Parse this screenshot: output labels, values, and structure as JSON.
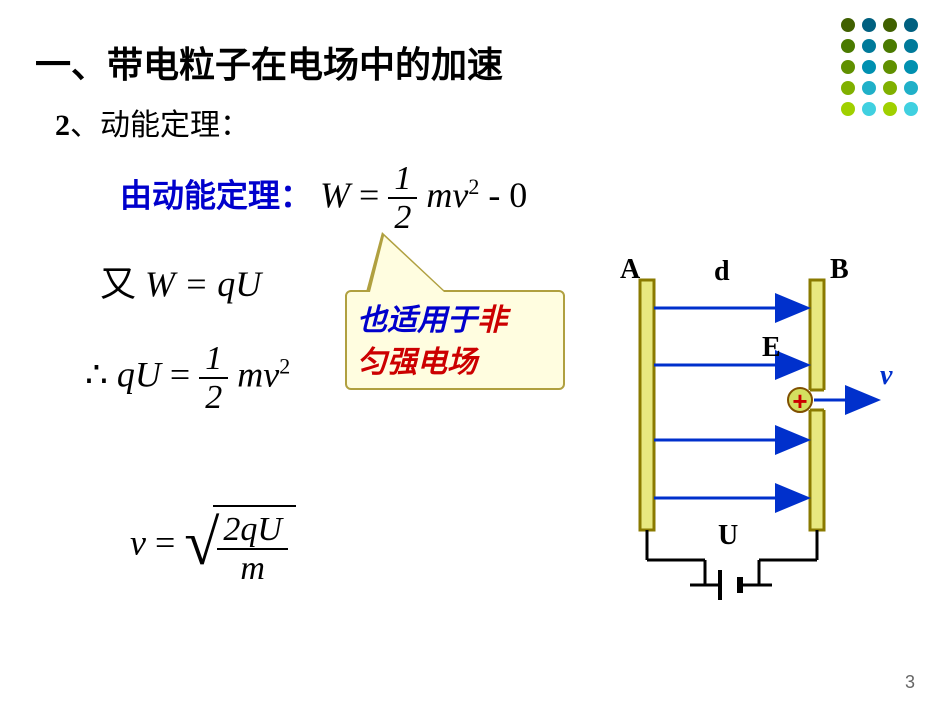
{
  "dots": {
    "colors": [
      [
        "#406000",
        "#006080",
        "#406000",
        "#006080"
      ],
      [
        "#4a7a00",
        "#007a9a",
        "#4a7a00",
        "#007a9a"
      ],
      [
        "#609000",
        "#0090b0",
        "#609000",
        "#0090b0"
      ],
      [
        "#80b000",
        "#20b0c8",
        "#80b000",
        "#20b0c8"
      ],
      [
        "#a0d000",
        "#40d0e0",
        "#a0d000",
        "#40d0e0"
      ]
    ]
  },
  "title": "一、带电粒子在电场中的加速",
  "subtitle_num": "2",
  "subtitle_text": "、动能定理：",
  "line1_label": "由动能定理：",
  "eq1": {
    "lhs": "W",
    "eq": " = ",
    "frac_num": "1",
    "frac_den": "2",
    "mv": "mv",
    "exp": "2",
    "tail": " - 0"
  },
  "eq2": {
    "pre": "又",
    "body": "W = qU"
  },
  "eq3": {
    "pre": "∴",
    "lhs": "qU",
    "eq": " = ",
    "frac_num": "1",
    "frac_den": "2",
    "mv": "mv",
    "exp": "2"
  },
  "eq4": {
    "lhs": "v",
    "eq": " = ",
    "sqrt_num": "2qU",
    "sqrt_den": "m"
  },
  "callout": {
    "part1": "也适用于",
    "part2": "非",
    "part3": "匀强电场"
  },
  "diagram": {
    "labelA": "A",
    "labelB": "B",
    "labeld": "d",
    "labelE": "E",
    "labelv": "v",
    "labelU": "U",
    "plate_color": "#8a7a00",
    "plate_fill": "#e8e880",
    "arrow_color": "#0030cc",
    "wire_color": "#000000",
    "charge_fill": "#d4e060",
    "charge_stroke": "#805000",
    "plus_color": "#cc0000",
    "v_color": "#0030cc"
  },
  "page_number": "3"
}
